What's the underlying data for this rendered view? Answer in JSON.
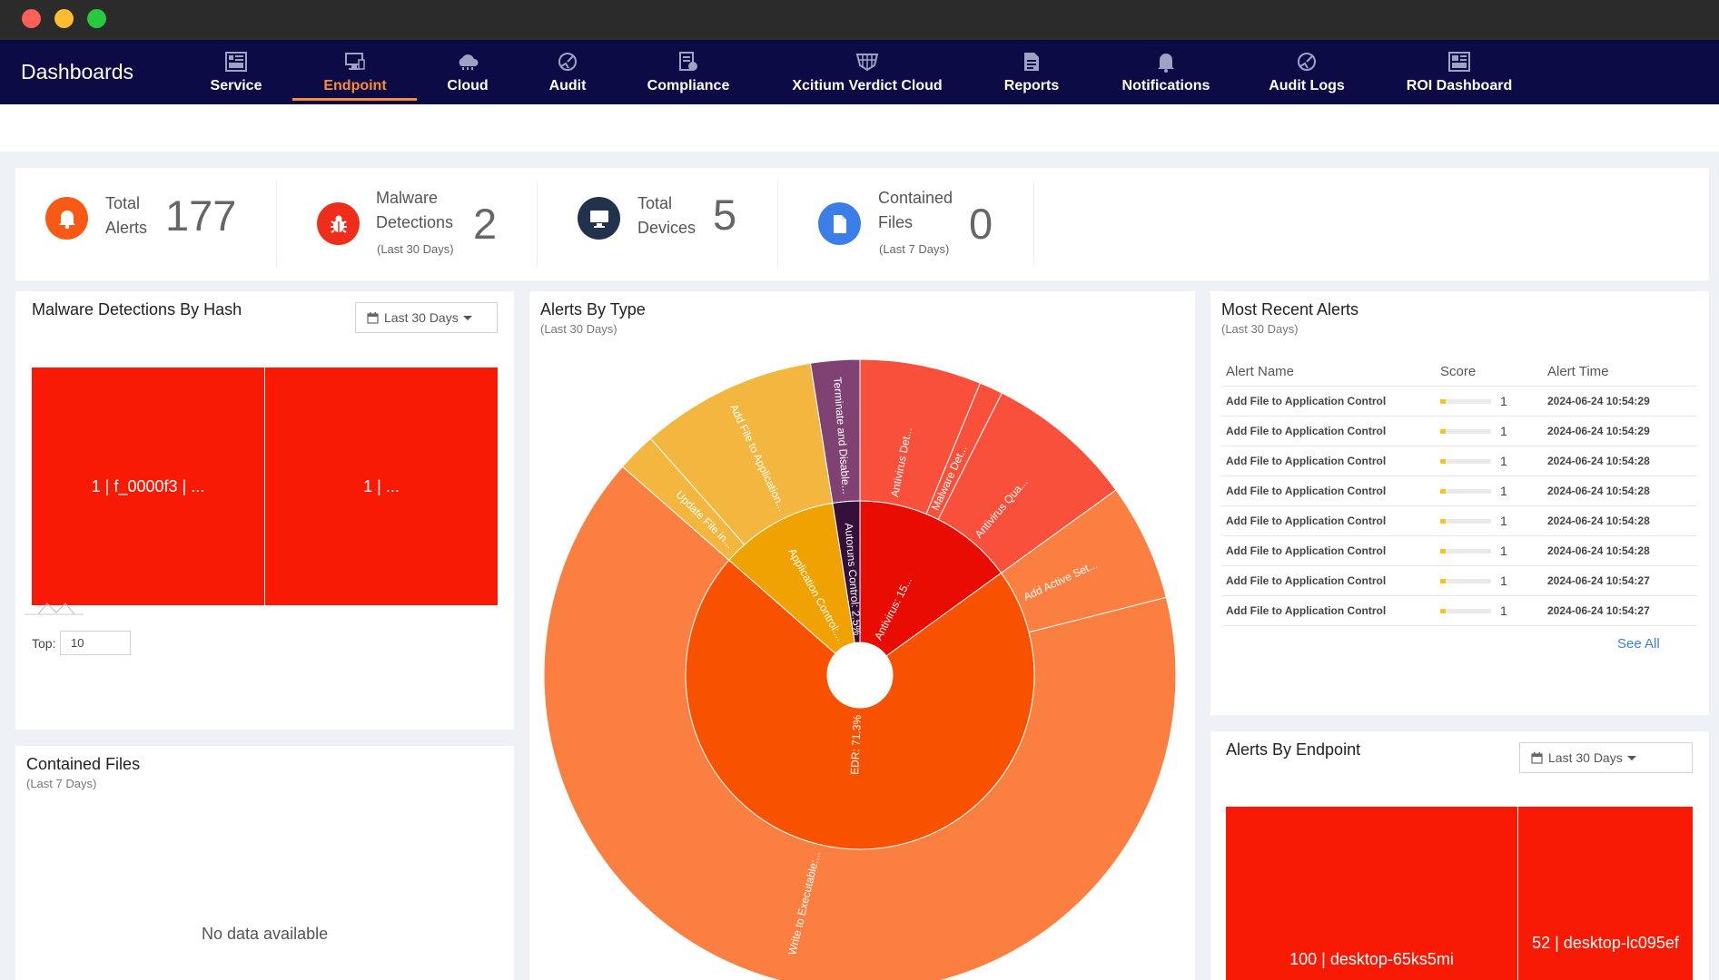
{
  "brand": "Dashboards",
  "nav": [
    {
      "label": "Service",
      "icon": "service-icon"
    },
    {
      "label": "Endpoint",
      "icon": "endpoint-icon",
      "active": true
    },
    {
      "label": "Cloud",
      "icon": "cloud-icon"
    },
    {
      "label": "Audit",
      "icon": "audit-icon"
    },
    {
      "label": "Compliance",
      "icon": "compliance-icon"
    },
    {
      "label": "Xcitium Verdict Cloud",
      "icon": "verdict-cloud-icon"
    },
    {
      "label": "Reports",
      "icon": "reports-icon"
    },
    {
      "label": "Notifications",
      "icon": "bell-icon"
    },
    {
      "label": "Audit Logs",
      "icon": "audit-logs-icon"
    },
    {
      "label": "ROI Dashboard",
      "icon": "roi-dashboard-icon"
    }
  ],
  "stats": {
    "total_alerts": {
      "label1": "Total",
      "label2": "Alerts",
      "value": "177",
      "color": "#f85a16"
    },
    "malware": {
      "label1": "Malware",
      "label2": "Detections",
      "sub": "(Last 30 Days)",
      "value": "2",
      "color": "#f02d1b"
    },
    "devices": {
      "label1": "Total",
      "label2": "Devices",
      "value": "5",
      "color": "#22324c"
    },
    "contained": {
      "label1": "Contained",
      "label2": "Files",
      "sub": "(Last 7 Days)",
      "value": "0",
      "color": "#3b7ee8"
    }
  },
  "malware_hash": {
    "title": "Malware Detections By Hash",
    "date_range": "Last 30 Days",
    "cells": [
      {
        "label": "1 | f_0000f3 | ...",
        "value": 1
      },
      {
        "label": "1 | ...",
        "value": 1
      }
    ],
    "top_label": "Top:",
    "top_value": "10"
  },
  "contained_files": {
    "title": "Contained Files",
    "sub": "(Last 7 Days)",
    "empty": "No data available"
  },
  "alerts_by_type": {
    "title": "Alerts By Type",
    "sub": "(Last 30 Days)",
    "inner": [
      {
        "label": "Antivirus: 15...",
        "value": 15,
        "color": "#e90c02"
      },
      {
        "label": "EDR: 71.3%",
        "value": 71.3,
        "color": "#f85200"
      },
      {
        "label": "Application Control:...",
        "value": 11,
        "color": "#f0a202"
      },
      {
        "label": "Autoruns Control: 2.5%",
        "value": 2.5,
        "color": "#35103b"
      }
    ],
    "outer": [
      {
        "label": "Antivirus Det...",
        "value": 6.2,
        "color": "#f9503c",
        "parent": 0
      },
      {
        "label": "Malware Det...",
        "value": 1.2,
        "color": "#f9503c",
        "parent": 0
      },
      {
        "label": "Antivirus Qua...",
        "value": 7.6,
        "color": "#f9503c",
        "parent": 0
      },
      {
        "label": "Add Active Set...",
        "value": 6.0,
        "color": "#fa7f40",
        "parent": 1
      },
      {
        "label": "Write to Executable:...",
        "value": 65.3,
        "color": "#fa7f40",
        "parent": 1
      },
      {
        "label": "Update File in...",
        "value": 2.0,
        "color": "#f3b73f",
        "parent": 2
      },
      {
        "label": "Add File to Application...",
        "value": 9.0,
        "color": "#f3b73f",
        "parent": 2
      },
      {
        "label": "Terminate and Disable...",
        "value": 2.5,
        "color": "#7f4273",
        "parent": 3
      }
    ]
  },
  "recent_alerts": {
    "title": "Most Recent Alerts",
    "sub": "(Last 30 Days)",
    "headers": {
      "name": "Alert Name",
      "score": "Score",
      "time": "Alert Time"
    },
    "rows": [
      {
        "name": "Add File to Application Control",
        "score": "1",
        "score_pct": 10,
        "time": "2024-06-24 10:54:29"
      },
      {
        "name": "Add File to Application Control",
        "score": "1",
        "score_pct": 10,
        "time": "2024-06-24 10:54:29"
      },
      {
        "name": "Add File to Application Control",
        "score": "1",
        "score_pct": 10,
        "time": "2024-06-24 10:54:28"
      },
      {
        "name": "Add File to Application Control",
        "score": "1",
        "score_pct": 10,
        "time": "2024-06-24 10:54:28"
      },
      {
        "name": "Add File to Application Control",
        "score": "1",
        "score_pct": 10,
        "time": "2024-06-24 10:54:28"
      },
      {
        "name": "Add File to Application Control",
        "score": "1",
        "score_pct": 10,
        "time": "2024-06-24 10:54:28"
      },
      {
        "name": "Add File to Application Control",
        "score": "1",
        "score_pct": 10,
        "time": "2024-06-24 10:54:27"
      },
      {
        "name": "Add File to Application Control",
        "score": "1",
        "score_pct": 10,
        "time": "2024-06-24 10:54:27"
      }
    ],
    "see_all": "See All"
  },
  "alerts_by_endpoint": {
    "title": "Alerts By Endpoint",
    "date_range": "Last 30 Days",
    "cells": [
      {
        "label": "100 | desktop-65ks5mi",
        "value": 100
      },
      {
        "label": "52 | desktop-lc095ef",
        "value": 52
      }
    ]
  }
}
